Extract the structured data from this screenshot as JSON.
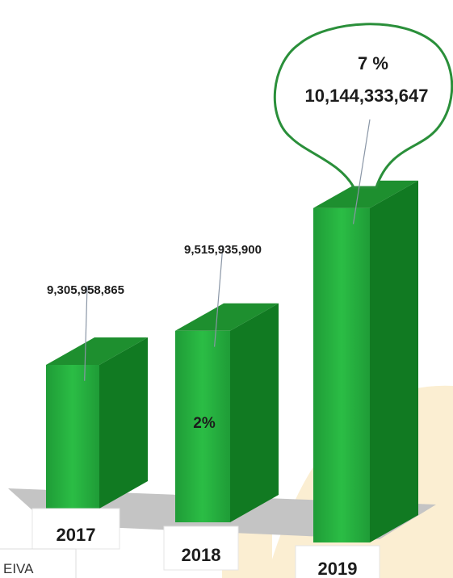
{
  "chart_data": {
    "type": "bar",
    "categories": [
      "2017",
      "2018",
      "2019"
    ],
    "values": [
      9305958865,
      9515935900,
      10144333647
    ],
    "value_labels": [
      "9,305,958,865",
      "9,515,935,900",
      "10,144,333,647"
    ],
    "growth_labels": [
      "",
      "2%",
      "7 %"
    ],
    "title": "",
    "xlabel": "",
    "ylabel": "",
    "grid": false,
    "legend": "none",
    "colors": {
      "bar_front": "#21a63a",
      "bar_side": "#117a22",
      "bar_top": "#1e8f2f",
      "floor": "#c2c2c2",
      "background_arc": "#fbeed2"
    }
  },
  "corner_text": "EIVA"
}
